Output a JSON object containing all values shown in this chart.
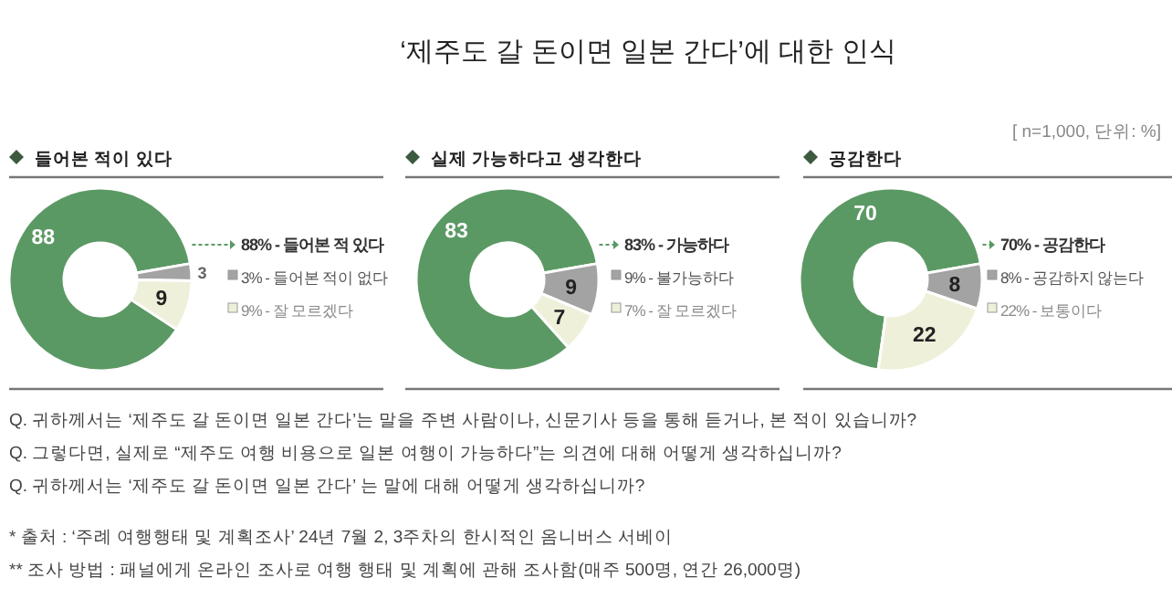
{
  "chart_data": [
    {
      "type": "other",
      "title": "‘제주도 갈 돈이면 일본 간다’에 대한 인식",
      "subtitle": "[ n=1,000, 단위: %]",
      "annotations": [
        "Q. 귀하께서는 ‘제주도 갈 돈이면 일본 간다’는 말을 주변 사람이나, 신문기사 등을 통해 듣거나, 본 적이 있습니까?",
        "Q. 그렇다면, 실제로 “제주도 여행 비용으로 일본 여행이 가능하다”는 의견에 대해 어떻게 생각하십니까?",
        "Q. 귀하께서는 ‘제주도 갈 돈이면 일본 간다’ 는 말에 대해 어떻게 생각하십니까?",
        "* 출처 : ‘주례 여행행태 및 계획조사’ 24년 7월 2, 3주차의 한시적인 옴니버스 서베이",
        "** 조사 방법 : 패널에게 온라인 조사로 여행 행태 및 계획에 관해 조사함(매주 500명, 연간 26,000명)"
      ]
    },
    {
      "type": "donut",
      "title": "들어본 적이 있다",
      "categories": [
        "88% - 들어본 적 있다",
        "3% - 들어본 적이 없다",
        "9% - 잘 모르겠다"
      ],
      "values": [
        88,
        3,
        9
      ],
      "colors": [
        "#5b9964",
        "#a3a3a3",
        "#eef0d9"
      ],
      "data_labels": true,
      "legend": "right"
    },
    {
      "type": "donut",
      "title": "실제 가능하다고 생각한다",
      "categories": [
        "83% - 가능하다",
        "9% - 불가능하다",
        "7% - 잘 모르겠다"
      ],
      "values": [
        83,
        9,
        7
      ],
      "colors": [
        "#5b9964",
        "#a3a3a3",
        "#eef0d9"
      ],
      "data_labels": true,
      "legend": "right"
    },
    {
      "type": "donut",
      "title": "공감한다",
      "categories": [
        "70% - 공감한다",
        "8% - 공감하지 않는다",
        "22% - 보통이다"
      ],
      "values": [
        70,
        8,
        22
      ],
      "colors": [
        "#5b9964",
        "#a3a3a3",
        "#eef0d9"
      ],
      "data_labels": true,
      "legend": "right"
    }
  ]
}
